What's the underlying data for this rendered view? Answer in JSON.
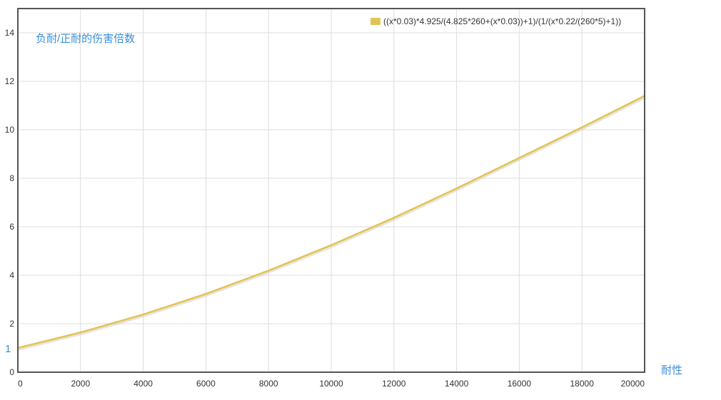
{
  "chart_data": {
    "type": "line",
    "ylabel": "负耐/正耐的伤害倍数",
    "xlabel": "耐性",
    "y_side_value": "1",
    "xlim": [
      0,
      20000
    ],
    "ylim": [
      0,
      15
    ],
    "x_ticks": [
      "0",
      "2000",
      "4000",
      "6000",
      "8000",
      "10000",
      "12000",
      "14000",
      "16000",
      "18000",
      "20000"
    ],
    "y_ticks": [
      "0",
      "2",
      "4",
      "6",
      "8",
      "10",
      "12",
      "14"
    ],
    "grid": true,
    "legend_position": "top-right",
    "series": [
      {
        "name": "((x*0.03)*4.925/(4.825*260+(x*0.03))+1)/(1/(x*0.22/(260*5)+1))",
        "color": "#e2c454",
        "x": [
          0,
          2000,
          4000,
          6000,
          8000,
          10000,
          12000,
          14000,
          16000,
          18000,
          20000
        ],
        "y": [
          1.0,
          1.64,
          2.38,
          3.23,
          4.19,
          5.24,
          6.37,
          7.58,
          8.84,
          10.1,
          11.4
        ]
      }
    ]
  },
  "colors": {
    "axis_title": "#3a8fd8",
    "axis_line": "#555555",
    "grid": "#dddddd",
    "tick_text": "#333333"
  }
}
